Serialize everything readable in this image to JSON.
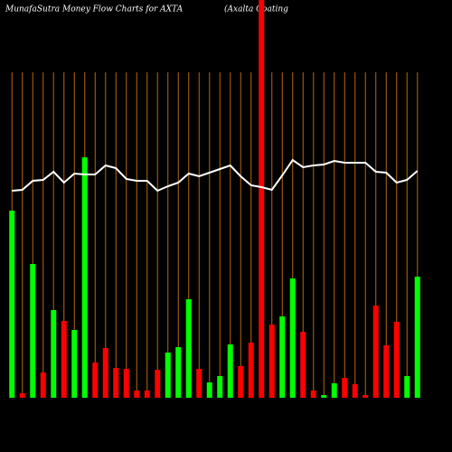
{
  "chart_data": {
    "type": "bar",
    "title": "MunafaSutra  Money  Flow  Charts for AXTA",
    "subtitle": "(Axalta  Coating",
    "categories": [
      null,
      null,
      null,
      null,
      null,
      null,
      null,
      null,
      null,
      null,
      null,
      null,
      null,
      null,
      null,
      null,
      null,
      null,
      null,
      null,
      null,
      null,
      null,
      null,
      null,
      null,
      null,
      null,
      null,
      null,
      null,
      null,
      null,
      null,
      null,
      null,
      null,
      null,
      null,
      null
    ],
    "series": [
      {
        "color": "#ff0000",
        "values": [
          null,
          5,
          null,
          28,
          null,
          85,
          null,
          null,
          39,
          55,
          33,
          32,
          8,
          8,
          31,
          null,
          null,
          null,
          32,
          null,
          null,
          null,
          35,
          61,
          440,
          81,
          null,
          null,
          73,
          8,
          null,
          null,
          22,
          15,
          3,
          102,
          58,
          84,
          null,
          null
        ]
      },
      {
        "color": "#00ff00",
        "values": [
          207,
          null,
          148,
          null,
          97,
          null,
          75,
          266,
          null,
          null,
          null,
          null,
          null,
          null,
          null,
          50,
          56,
          109,
          null,
          17,
          24,
          59,
          null,
          null,
          null,
          null,
          90,
          132,
          null,
          null,
          3,
          16,
          null,
          null,
          null,
          null,
          null,
          null,
          24,
          134
        ]
      }
    ],
    "line": {
      "color": "#ffffff",
      "values": [
        229,
        230,
        240,
        241,
        250,
        238,
        248,
        247,
        247,
        257,
        254,
        242,
        240,
        240,
        229,
        234,
        238,
        248,
        245,
        249,
        253,
        257,
        245,
        235,
        233,
        230,
        246,
        263,
        255,
        257,
        258,
        262,
        260,
        260,
        260,
        250,
        249,
        238,
        241,
        251
      ]
    },
    "ylim": [
      0,
      440
    ],
    "gridline_color": "#b5690e"
  }
}
